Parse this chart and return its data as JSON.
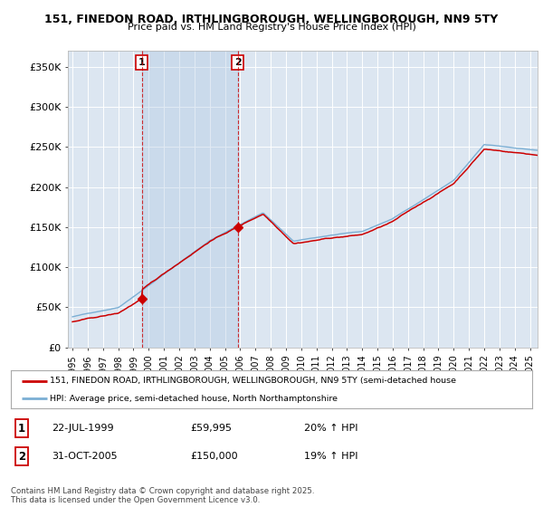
{
  "title_line1": "151, FINEDON ROAD, IRTHLINGBOROUGH, WELLINGBOROUGH, NN9 5TY",
  "title_line2": "Price paid vs. HM Land Registry's House Price Index (HPI)",
  "background_color": "#ffffff",
  "plot_bg_color": "#dce6f1",
  "shade_color": "#c8d8ee",
  "grid_color": "#ffffff",
  "red_line_color": "#cc0000",
  "blue_line_color": "#7bafd4",
  "yticks": [
    0,
    50000,
    100000,
    150000,
    200000,
    250000,
    300000,
    350000
  ],
  "ytick_labels": [
    "£0",
    "£50K",
    "£100K",
    "£150K",
    "£200K",
    "£250K",
    "£300K",
    "£350K"
  ],
  "ylim": [
    0,
    370000
  ],
  "xlim_start": 1994.7,
  "xlim_end": 2025.5,
  "sale1_x": 1999.55,
  "sale1_y": 59995,
  "sale1_label": "1",
  "sale1_date": "22-JUL-1999",
  "sale1_price": "£59,995",
  "sale1_hpi": "20% ↑ HPI",
  "sale2_x": 2005.83,
  "sale2_y": 150000,
  "sale2_label": "2",
  "sale2_date": "31-OCT-2005",
  "sale2_price": "£150,000",
  "sale2_hpi": "19% ↑ HPI",
  "legend_line1": "151, FINEDON ROAD, IRTHLINGBOROUGH, WELLINGBOROUGH, NN9 5TY (semi-detached house",
  "legend_line2": "HPI: Average price, semi-detached house, North Northamptonshire",
  "footer": "Contains HM Land Registry data © Crown copyright and database right 2025.\nThis data is licensed under the Open Government Licence v3.0.",
  "xticks": [
    1995,
    1996,
    1997,
    1998,
    1999,
    2000,
    2001,
    2002,
    2003,
    2004,
    2005,
    2006,
    2007,
    2008,
    2009,
    2010,
    2011,
    2012,
    2013,
    2014,
    2015,
    2016,
    2017,
    2018,
    2019,
    2020,
    2021,
    2022,
    2023,
    2024,
    2025
  ]
}
